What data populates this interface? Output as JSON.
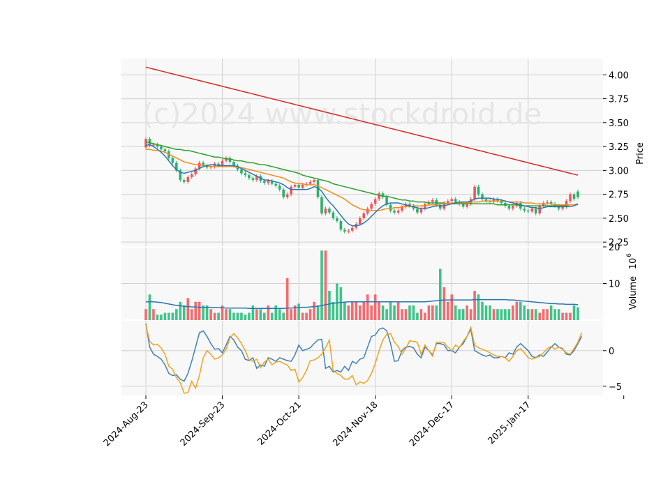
{
  "watermark": "(c)2024 www.stockdroid.de",
  "chart_data": {
    "type": "candlestick",
    "panels": [
      {
        "name": "price",
        "ylabel": "Price",
        "ylim": [
          2.2,
          4.17
        ],
        "yticks": [
          "2.25",
          "2.50",
          "2.75",
          "3.00",
          "3.25",
          "3.50",
          "3.75",
          "4.00"
        ],
        "grid": true
      },
      {
        "name": "volume",
        "ylabel": "Volume",
        "yunit": "10",
        "yunit_exponent": "6",
        "ylim": [
          0,
          20
        ],
        "yticks": [
          "10",
          "20"
        ],
        "grid": true
      },
      {
        "name": "oscillator",
        "ylim": [
          -6.3,
          4.3
        ],
        "yticks": [
          "0",
          "−5"
        ],
        "grid": true
      }
    ],
    "x_tick_labels": [
      "2024-Aug-23",
      "2024-Sep-23",
      "2024-Oct-21",
      "2024-Nov-18",
      "2024-Dec-17",
      "2025-Jan-17"
    ],
    "x_tick_index": [
      0,
      20,
      40,
      60,
      80,
      100
    ],
    "candles_close": [
      3.24,
      3.33,
      3.26,
      3.27,
      3.25,
      3.22,
      3.2,
      3.13,
      3.08,
      3.0,
      2.9,
      2.88,
      2.93,
      2.96,
      3.02,
      3.08,
      3.05,
      3.03,
      3.04,
      3.07,
      3.05,
      3.1,
      3.13,
      3.09,
      3.05,
      3.01,
      2.97,
      2.95,
      2.92,
      2.9,
      2.94,
      2.89,
      2.87,
      2.89,
      2.86,
      2.84,
      2.8,
      2.72,
      2.75,
      2.83,
      2.85,
      2.82,
      2.85,
      2.86,
      2.88,
      2.9,
      2.72,
      2.55,
      2.6,
      2.56,
      2.5,
      2.47,
      2.38,
      2.36,
      2.37,
      2.4,
      2.44,
      2.5,
      2.55,
      2.6,
      2.65,
      2.7,
      2.76,
      2.72,
      2.64,
      2.58,
      2.56,
      2.58,
      2.62,
      2.65,
      2.63,
      2.6,
      2.56,
      2.6,
      2.65,
      2.67,
      2.69,
      2.64,
      2.6,
      2.66,
      2.68,
      2.7,
      2.67,
      2.65,
      2.62,
      2.65,
      2.7,
      2.83,
      2.75,
      2.7,
      2.68,
      2.67,
      2.7,
      2.68,
      2.66,
      2.63,
      2.6,
      2.63,
      2.66,
      2.6,
      2.58,
      2.57,
      2.6,
      2.55,
      2.63,
      2.66,
      2.67,
      2.65,
      2.63,
      2.6,
      2.62,
      2.68,
      2.75,
      2.78
    ],
    "candles_open": [
      3.33,
      3.26,
      3.27,
      3.25,
      3.22,
      3.2,
      3.13,
      3.08,
      3.0,
      2.9,
      2.88,
      2.93,
      2.96,
      3.02,
      3.08,
      3.05,
      3.03,
      3.04,
      3.07,
      3.05,
      3.1,
      3.13,
      3.09,
      3.05,
      3.01,
      2.97,
      2.95,
      2.92,
      2.9,
      2.94,
      2.89,
      2.87,
      2.89,
      2.86,
      2.84,
      2.8,
      2.72,
      2.75,
      2.83,
      2.85,
      2.82,
      2.85,
      2.86,
      2.88,
      2.9,
      2.72,
      2.55,
      2.6,
      2.56,
      2.5,
      2.47,
      2.38,
      2.36,
      2.37,
      2.4,
      2.44,
      2.5,
      2.55,
      2.6,
      2.65,
      2.7,
      2.76,
      2.72,
      2.64,
      2.58,
      2.56,
      2.58,
      2.62,
      2.65,
      2.63,
      2.6,
      2.56,
      2.6,
      2.65,
      2.67,
      2.69,
      2.64,
      2.6,
      2.66,
      2.68,
      2.7,
      2.67,
      2.65,
      2.62,
      2.65,
      2.7,
      2.83,
      2.75,
      2.7,
      2.68,
      2.67,
      2.7,
      2.68,
      2.66,
      2.63,
      2.6,
      2.63,
      2.66,
      2.6,
      2.58,
      2.57,
      2.6,
      2.55,
      2.63,
      2.66,
      2.67,
      2.65,
      2.63,
      2.6,
      2.62,
      2.68,
      2.75,
      2.7,
      2.72
    ],
    "volume": [
      3,
      7,
      3,
      1.5,
      1.5,
      2,
      2,
      2,
      3,
      5,
      4,
      6,
      3,
      5,
      5,
      4,
      4,
      3,
      2,
      2,
      4,
      3,
      3,
      2,
      2,
      2,
      1.5,
      2,
      4,
      3,
      3,
      2,
      4,
      2,
      4,
      3,
      2,
      11.5,
      3,
      4,
      4.5,
      2,
      2,
      3,
      5,
      4,
      19,
      19,
      8,
      5,
      10,
      9,
      5,
      4,
      5,
      5,
      4,
      5,
      7,
      4,
      7,
      5,
      4,
      3,
      5,
      4,
      5,
      3,
      3,
      4,
      4,
      2,
      3,
      2,
      4,
      4,
      4,
      14,
      9,
      5,
      7,
      4,
      3,
      3,
      4,
      3,
      8,
      7,
      5,
      4,
      4,
      3,
      3,
      3,
      3,
      3,
      4,
      5,
      5,
      4,
      3,
      3,
      3,
      2,
      3,
      3,
      4,
      3,
      3,
      2,
      2,
      2,
      4,
      3.5
    ],
    "oscillator_blue": [
      3.8,
      0.5,
      -0.5,
      -0.8,
      -1.2,
      -2.0,
      -3.2,
      -3.5,
      -3.4,
      -4.0,
      -4.3,
      -3.2,
      -1.5,
      0.5,
      2.5,
      2.8,
      2.0,
      1.0,
      0.2,
      0.3,
      -0.3,
      0.8,
      2.0,
      1.5,
      0.5,
      0.0,
      -1.2,
      -1.4,
      -1.0,
      -2.5,
      -2.0,
      -2.2,
      -1.0,
      -1.2,
      -1.5,
      -1.0,
      -1.2,
      -1.4,
      -1.5,
      -0.6,
      0.8,
      0.0,
      0.2,
      0.4,
      1.0,
      1.5,
      1.6,
      -2.5,
      -2.2,
      -3.0,
      -2.8,
      -3.0,
      -2.2,
      -2.8,
      -1.5,
      -1.8,
      -1.2,
      -1.0,
      0.5,
      2.0,
      2.2,
      3.0,
      3.2,
      2.8,
      1.0,
      -1.5,
      -1.4,
      0.0,
      0.5,
      0.6,
      0.4,
      -0.5,
      -1.0,
      0.5,
      0.0,
      -0.6,
      1.0,
      1.0,
      0.8,
      0.0,
      0.0,
      -0.3,
      0.5,
      1.0,
      2.0,
      3.0,
      0.0,
      -0.3,
      -0.6,
      -0.8,
      -0.6,
      -1.0,
      -1.0,
      -0.8,
      -1.0,
      -0.3,
      -0.5,
      0.5,
      1.0,
      0.5,
      0.0,
      -0.8,
      -1.0,
      -0.6,
      -0.8,
      -0.2,
      0.5,
      1.0,
      0.5,
      0.3,
      -0.5,
      -0.6,
      0.0,
      1.0,
      2.0
    ],
    "oscillator_orange": [
      3.6,
      1.3,
      0.8,
      0.9,
      0.4,
      -0.5,
      -2.2,
      -2.6,
      -3.8,
      -4.5,
      -6.0,
      -5.9,
      -4.3,
      -5.3,
      -3.5,
      -1.0,
      0.0,
      -0.5,
      -1.2,
      -1.0,
      -0.6,
      0.2,
      1.8,
      2.4,
      1.8,
      1.0,
      0.0,
      -1.3,
      -1.5,
      -1.2,
      -2.4,
      -1.6,
      -1.2,
      -2.0,
      -1.6,
      -1.5,
      -1.8,
      -2.0,
      -2.8,
      -2.6,
      -4.4,
      -3.8,
      -2.8,
      -1.4,
      -1.3,
      -1.0,
      -0.5,
      0.4,
      1.5,
      -2.8,
      -3.2,
      -3.5,
      -4.0,
      -4.0,
      -3.5,
      -4.8,
      -4.4,
      -4.6,
      -4.2,
      -3.2,
      -1.8,
      0.0,
      1.5,
      2.3,
      2.4,
      1.2,
      0.6,
      -0.5,
      0.3,
      1.4,
      1.3,
      1.2,
      -0.5,
      0.8,
      0.0,
      -0.8,
      1.2,
      1.2,
      1.1,
      0.5,
      0.0,
      0.8,
      0.4,
      1.3,
      2.0,
      3.3,
      0.8,
      0.4,
      0.2,
      0.0,
      -0.3,
      -0.6,
      -0.8,
      -0.8,
      -1.0,
      -1.5,
      -0.8,
      0.0,
      0.3,
      -0.3,
      -1.0,
      -1.2,
      -1.0,
      -0.8,
      -0.3,
      0.3,
      0.6,
      0.2,
      0.5,
      0.2,
      -0.3,
      -0.5,
      0.3,
      1.2,
      2.5
    ],
    "sma_short": [
      3.26,
      3.27,
      3.25,
      3.22,
      3.19,
      3.15,
      3.1,
      3.05,
      3.01,
      2.98,
      2.97,
      2.98,
      2.99,
      3.0,
      3.02,
      3.04,
      3.05,
      3.06,
      3.06,
      3.05,
      3.05,
      3.05,
      3.05,
      3.05,
      3.04,
      3.02,
      3.0,
      2.98,
      2.96,
      2.94,
      2.92,
      2.9,
      2.9,
      2.89,
      2.88,
      2.87,
      2.85,
      2.82,
      2.8,
      2.8,
      2.8,
      2.8,
      2.8,
      2.81,
      2.83,
      2.82,
      2.78,
      2.72,
      2.67,
      2.63,
      2.58,
      2.53,
      2.48,
      2.44,
      2.42,
      2.42,
      2.43,
      2.45,
      2.48,
      2.52,
      2.56,
      2.6,
      2.63,
      2.65,
      2.66,
      2.66,
      2.66,
      2.65,
      2.64,
      2.63,
      2.62,
      2.61,
      2.6,
      2.6,
      2.61,
      2.62,
      2.63,
      2.63,
      2.63,
      2.64,
      2.65,
      2.66,
      2.67,
      2.67,
      2.67,
      2.68,
      2.7,
      2.71,
      2.71,
      2.71,
      2.71,
      2.7,
      2.7,
      2.69,
      2.68,
      2.67,
      2.66,
      2.65,
      2.64,
      2.63,
      2.62,
      2.61,
      2.61,
      2.6,
      2.61,
      2.62,
      2.62,
      2.62,
      2.62,
      2.62,
      2.62,
      2.62,
      2.63,
      2.65
    ],
    "sma_mid": [
      3.22,
      3.22,
      3.21,
      3.21,
      3.2,
      3.19,
      3.17,
      3.15,
      3.13,
      3.11,
      3.09,
      3.08,
      3.07,
      3.06,
      3.06,
      3.05,
      3.05,
      3.04,
      3.04,
      3.04,
      3.04,
      3.04,
      3.04,
      3.04,
      3.03,
      3.03,
      3.02,
      3.01,
      3.0,
      2.99,
      2.98,
      2.97,
      2.96,
      2.95,
      2.94,
      2.93,
      2.92,
      2.9,
      2.88,
      2.87,
      2.86,
      2.86,
      2.85,
      2.85,
      2.85,
      2.84,
      2.82,
      2.8,
      2.78,
      2.76,
      2.74,
      2.72,
      2.7,
      2.67,
      2.64,
      2.62,
      2.6,
      2.59,
      2.58,
      2.58,
      2.58,
      2.58,
      2.59,
      2.6,
      2.6,
      2.61,
      2.61,
      2.62,
      2.62,
      2.62,
      2.63,
      2.63,
      2.63,
      2.63,
      2.64,
      2.64,
      2.64,
      2.65,
      2.65,
      2.65,
      2.66,
      2.66,
      2.66,
      2.66,
      2.66,
      2.67,
      2.67,
      2.67,
      2.68,
      2.68,
      2.68,
      2.68,
      2.68,
      2.68,
      2.68,
      2.67,
      2.67,
      2.67,
      2.67,
      2.66,
      2.66,
      2.66,
      2.65,
      2.65,
      2.65,
      2.65,
      2.65,
      2.64,
      2.64,
      2.64,
      2.64,
      2.64,
      2.64,
      2.64
    ],
    "sma_long": [
      3.3,
      3.29,
      3.28,
      3.27,
      3.26,
      3.25,
      3.24,
      3.23,
      3.22,
      3.22,
      3.21,
      3.21,
      3.2,
      3.19,
      3.18,
      3.17,
      3.16,
      3.15,
      3.14,
      3.14,
      3.13,
      3.12,
      3.12,
      3.11,
      3.1,
      3.1,
      3.09,
      3.08,
      3.08,
      3.07,
      3.06,
      3.06,
      3.05,
      3.04,
      3.03,
      3.02,
      3.01,
      3.0,
      2.99,
      2.98,
      2.97,
      2.95,
      2.94,
      2.93,
      2.92,
      2.91,
      2.9,
      2.89,
      2.88,
      2.86,
      2.85,
      2.84,
      2.83,
      2.82,
      2.81,
      2.8,
      2.79,
      2.78,
      2.77,
      2.76,
      2.75,
      2.74,
      2.73,
      2.73,
      2.72,
      2.71,
      2.7,
      2.69,
      2.69,
      2.68,
      2.68,
      2.67,
      2.67,
      2.67,
      2.66,
      2.66,
      2.66,
      2.66,
      2.66,
      2.65,
      2.65,
      2.65,
      2.65,
      2.65,
      2.65,
      2.65,
      2.65,
      2.65,
      2.65,
      2.65,
      2.65,
      2.65,
      2.64,
      2.64,
      2.64,
      2.64,
      2.64,
      2.64,
      2.63,
      2.63,
      2.63,
      2.63,
      2.63,
      2.63,
      2.63,
      2.63,
      2.63,
      2.63,
      2.63,
      2.63,
      2.63,
      2.64,
      2.64,
      2.65
    ],
    "sma_very_long": [
      4.08,
      4.07,
      4.06,
      4.05,
      4.04,
      4.03,
      4.02,
      4.01,
      4.0,
      3.99,
      3.98,
      3.97,
      3.96,
      3.95,
      3.94,
      3.93,
      3.92,
      3.91,
      3.9,
      3.89,
      3.88,
      3.87,
      3.86,
      3.85,
      3.84,
      3.83,
      3.82,
      3.81,
      3.8,
      3.79,
      3.78,
      3.77,
      3.76,
      3.75,
      3.74,
      3.73,
      3.72,
      3.71,
      3.7,
      3.69,
      3.68,
      3.67,
      3.66,
      3.65,
      3.64,
      3.63,
      3.62,
      3.61,
      3.6,
      3.59,
      3.58,
      3.57,
      3.56,
      3.55,
      3.54,
      3.53,
      3.52,
      3.51,
      3.5,
      3.49,
      3.48,
      3.47,
      3.46,
      3.45,
      3.44,
      3.43,
      3.42,
      3.41,
      3.4,
      3.39,
      3.38,
      3.37,
      3.36,
      3.35,
      3.34,
      3.33,
      3.32,
      3.31,
      3.3,
      3.29,
      3.28,
      3.27,
      3.26,
      3.25,
      3.24,
      3.23,
      3.22,
      3.21,
      3.2,
      3.19,
      3.18,
      3.17,
      3.16,
      3.15,
      3.14,
      3.13,
      3.12,
      3.11,
      3.1,
      3.09,
      3.08,
      3.07,
      3.06,
      3.05,
      3.04,
      3.03,
      3.02,
      3.01,
      3.0,
      2.99,
      2.98,
      2.97,
      2.96,
      2.95
    ],
    "volume_avg": [
      5.0,
      5.0,
      5.0,
      4.9,
      4.8,
      4.6,
      4.4,
      4.2,
      4.0,
      3.9,
      3.8,
      3.7,
      3.6,
      3.6,
      3.5,
      3.5,
      3.5,
      3.5,
      3.4,
      3.4,
      3.4,
      3.3,
      3.3,
      3.3,
      3.3,
      3.3,
      3.3,
      3.2,
      3.2,
      3.2,
      3.2,
      3.2,
      3.2,
      3.2,
      3.2,
      3.2,
      3.2,
      3.3,
      3.3,
      3.4,
      3.4,
      3.5,
      3.5,
      3.6,
      3.7,
      3.8,
      4.0,
      4.2,
      4.4,
      4.6,
      4.7,
      4.8,
      4.9,
      5.0,
      5.0,
      5.0,
      5.0,
      5.0,
      5.0,
      5.0,
      5.0,
      5.0,
      5.0,
      5.0,
      5.0,
      5.0,
      5.0,
      5.0,
      5.0,
      5.0,
      5.0,
      5.0,
      5.0,
      5.0,
      5.1,
      5.2,
      5.3,
      5.4,
      5.5,
      5.5,
      5.5,
      5.5,
      5.5,
      5.5,
      5.5,
      5.5,
      5.6,
      5.6,
      5.6,
      5.6,
      5.6,
      5.6,
      5.6,
      5.6,
      5.6,
      5.5,
      5.5,
      5.4,
      5.3,
      5.2,
      5.1,
      5.0,
      4.9,
      4.8,
      4.7,
      4.6,
      4.5,
      4.5,
      4.4,
      4.4,
      4.3,
      4.3,
      4.3,
      4.2
    ]
  },
  "colors": {
    "up": "#26b36b",
    "down": "#f2545b",
    "vol_up": "#3cc48a",
    "vol_down": "#f7696e",
    "sma_short": "#2a76b0",
    "sma_mid": "#f28c1a",
    "sma_long": "#2ca02c",
    "sma_very_long": "#d62728",
    "osc_blue": "#3f80b5",
    "osc_orange": "#f2a21d",
    "grid": "#d0d0d0",
    "panel_bg": "#f8f8f8",
    "watermark": "#e3e3e3"
  }
}
